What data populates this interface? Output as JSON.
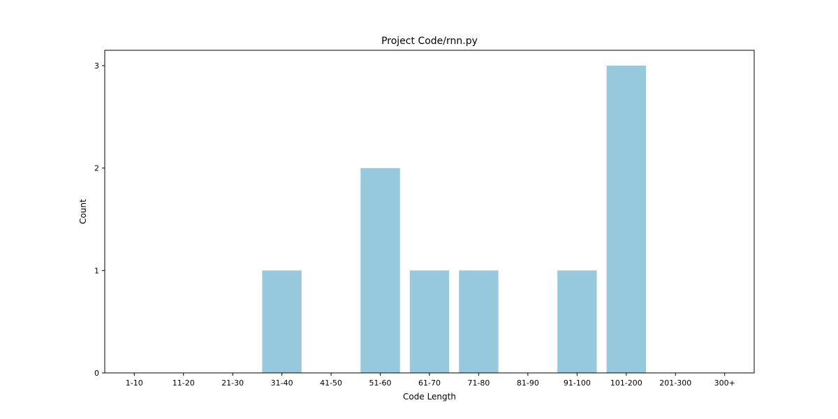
{
  "chart_data": {
    "type": "bar",
    "title": "Project Code/rnn.py",
    "xlabel": "Code Length",
    "ylabel": "Count",
    "categories": [
      "1-10",
      "11-20",
      "21-30",
      "31-40",
      "41-50",
      "51-60",
      "61-70",
      "71-80",
      "81-90",
      "91-100",
      "101-200",
      "201-300",
      "300+"
    ],
    "values": [
      0,
      0,
      0,
      1,
      0,
      2,
      1,
      1,
      0,
      1,
      3,
      0,
      0
    ],
    "ylim": [
      0,
      3.15
    ],
    "yticks": [
      0,
      1,
      2,
      3
    ],
    "grid": false,
    "bar_color": "#96c9dd"
  }
}
